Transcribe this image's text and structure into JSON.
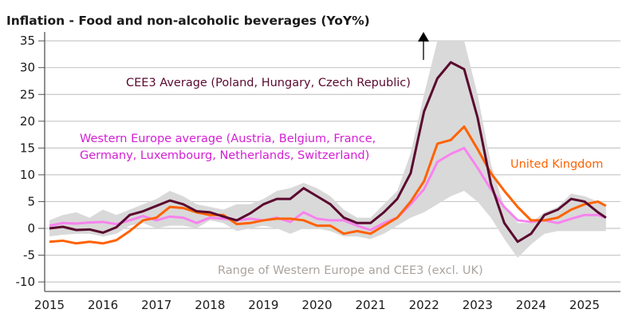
{
  "chart_data": {
    "type": "line",
    "title": "Inflation - Food and non-alcoholic beverages (YoY%)",
    "xlabel": "",
    "ylabel": "",
    "xlim": [
      2015,
      2025.6
    ],
    "ylim": [
      -10,
      35
    ],
    "grid": true,
    "x_ticks": [
      "2015",
      "2016",
      "2017",
      "2018",
      "2019",
      "2020",
      "2021",
      "2022",
      "2023",
      "2024",
      "2025"
    ],
    "y_ticks": [
      "35",
      "30",
      "25",
      "20",
      "15",
      "10",
      "5",
      "0",
      "-5",
      "-10"
    ],
    "x": [
      2015.0,
      2015.25,
      2015.5,
      2015.75,
      2016.0,
      2016.25,
      2016.5,
      2016.75,
      2017.0,
      2017.25,
      2017.5,
      2017.75,
      2018.0,
      2018.25,
      2018.5,
      2018.75,
      2019.0,
      2019.25,
      2019.5,
      2019.75,
      2020.0,
      2020.25,
      2020.5,
      2020.75,
      2021.0,
      2021.25,
      2021.5,
      2021.75,
      2022.0,
      2022.25,
      2022.5,
      2022.75,
      2023.0,
      2023.25,
      2023.5,
      2023.75,
      2024.0,
      2024.25,
      2024.5,
      2024.75,
      2025.0,
      2025.25,
      2025.4
    ],
    "range_band": {
      "name": "Range of Western Europe and CEE3 (excl. UK)",
      "color": "#d9d9d9",
      "label_color": "#aba49f",
      "low": [
        -1.5,
        -1.2,
        -1,
        -1,
        -1.5,
        -1,
        0.5,
        1,
        0,
        0.5,
        0.5,
        0,
        1.5,
        1,
        -0.5,
        0,
        0.5,
        0,
        -1,
        0,
        0,
        -0.5,
        -1.5,
        -1.5,
        -2,
        -1,
        0.5,
        2,
        3,
        4.5,
        6,
        7,
        5,
        2,
        -2,
        -5.5,
        -3,
        -1,
        -0.5,
        -0.5,
        -0.5,
        -0.5,
        -0.5
      ],
      "high": [
        1.5,
        2.5,
        3,
        2,
        3.5,
        2.5,
        3.5,
        4.5,
        5.5,
        7,
        6,
        4.5,
        4,
        3.5,
        4.5,
        4.5,
        5.5,
        7,
        7.5,
        8.5,
        7.5,
        6,
        3.5,
        2,
        2,
        4.5,
        7,
        14,
        25,
        35,
        35,
        35,
        25,
        12,
        4,
        1,
        1,
        3,
        4,
        6.5,
        6,
        5,
        4
      ]
    },
    "series": [
      {
        "name": "Western Europe average (Austria, Belgium, France,",
        "name_line2": "Germany, Luxembourg, Netherlands, Switzerland)",
        "color": "#f783ee",
        "label_color": "#d420d4",
        "values": [
          0.5,
          1.0,
          0.9,
          1.1,
          1.2,
          0.8,
          1.5,
          2.3,
          1.5,
          2.2,
          2.0,
          1.0,
          2.0,
          1.8,
          1.5,
          1.8,
          1.5,
          2.0,
          1.2,
          3.0,
          1.8,
          1.5,
          1.5,
          0.5,
          -0.3,
          1.0,
          2.0,
          4.5,
          7.3,
          12.4,
          13.9,
          15.0,
          11.3,
          7.3,
          4.0,
          1.5,
          1.2,
          1.5,
          1.0,
          1.8,
          2.5,
          2.5,
          2.0
        ]
      },
      {
        "name": "United Kingdom",
        "color": "#ff6200",
        "label_color": "#ff6200",
        "values": [
          -2.5,
          -2.3,
          -2.8,
          -2.5,
          -2.8,
          -2.2,
          -0.5,
          1.5,
          2.0,
          4.0,
          3.8,
          3.0,
          2.5,
          2.5,
          0.8,
          1.0,
          1.5,
          1.8,
          1.8,
          1.5,
          0.5,
          0.5,
          -1.0,
          -0.5,
          -1.0,
          0.5,
          2.0,
          5.0,
          8.8,
          15.8,
          16.5,
          19.0,
          14.8,
          10.3,
          7.0,
          4.0,
          1.5,
          1.5,
          2.0,
          3.5,
          4.5,
          5.0,
          4.2
        ]
      },
      {
        "name": "CEE3 Average (Poland, Hungary, Czech Republic)",
        "color": "#5a0a2e",
        "label_color": "#5a0a2e",
        "values": [
          0,
          0.3,
          -0.3,
          -0.2,
          -0.8,
          0.2,
          2.5,
          3.2,
          4.2,
          5.2,
          4.5,
          3.2,
          3.0,
          2.2,
          1.5,
          2.8,
          4.5,
          5.5,
          5.5,
          7.5,
          6.0,
          4.5,
          2.0,
          1.0,
          1.0,
          3.0,
          5.5,
          10.3,
          21.8,
          28,
          31,
          29.7,
          20.7,
          8.3,
          1.0,
          -2.5,
          -1.0,
          2.5,
          3.5,
          5.5,
          5.0,
          3.0,
          2.0
        ]
      }
    ],
    "annotations": [
      "up-arrow-icon (range exceeds axis)"
    ]
  }
}
